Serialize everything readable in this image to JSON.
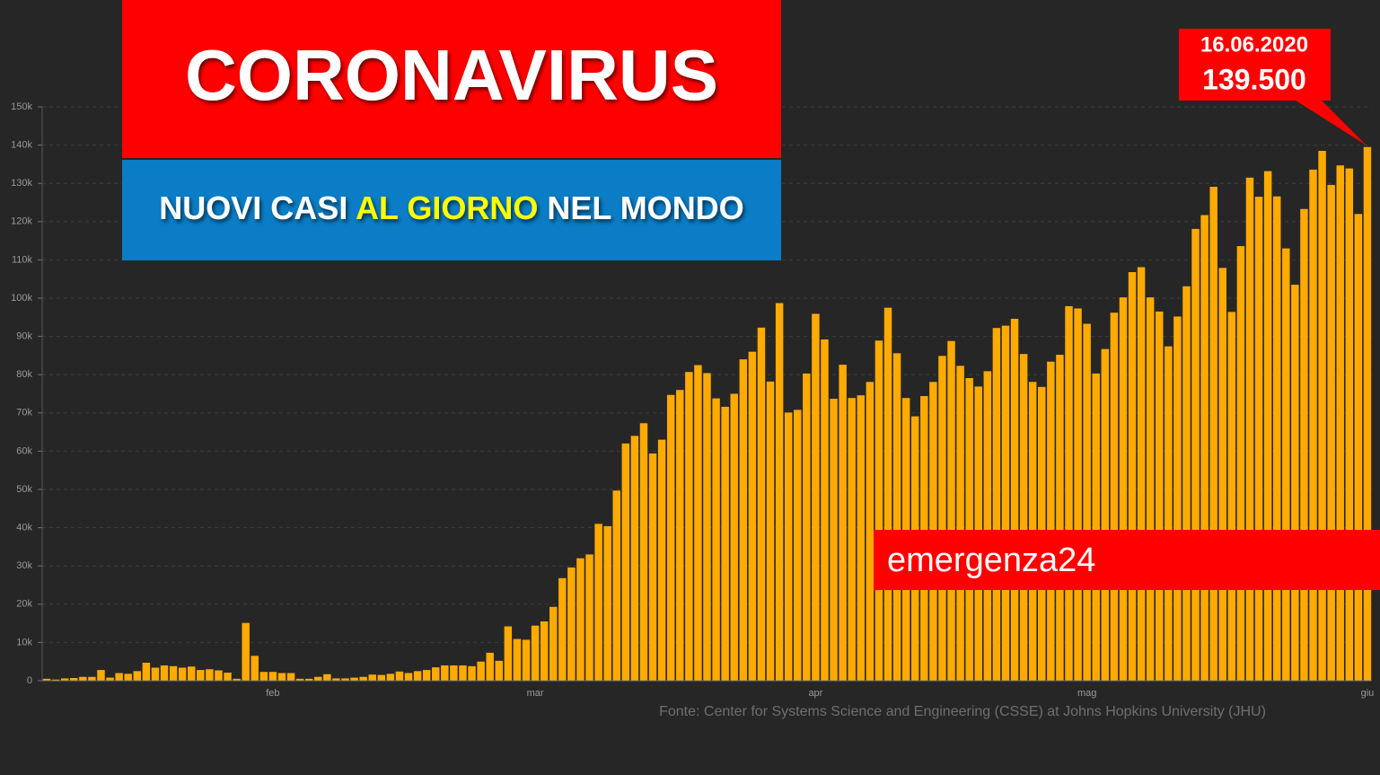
{
  "chart_data": {
    "type": "bar",
    "title": "CORONAVIRUS",
    "subtitle": [
      "NUOVI CASI ",
      "AL GIORNO",
      " NEL MONDO"
    ],
    "annotation": {
      "date": "16.06.2020",
      "label": "139.500"
    },
    "watermark": "emergenza24",
    "source": "Fonte: Center for Systems Science and Engineering (CSSE) at Johns Hopkins University (JHU)",
    "color": "#ffaa00",
    "grid": true,
    "categories": [
      null,
      null,
      null,
      null,
      null,
      null,
      null,
      null,
      null,
      null,
      null,
      null,
      null,
      null,
      null,
      null,
      null,
      null,
      null,
      null,
      null,
      null,
      null,
      null,
      null,
      "feb",
      null,
      null,
      null,
      null,
      null,
      null,
      null,
      null,
      null,
      null,
      null,
      null,
      null,
      null,
      null,
      null,
      null,
      null,
      null,
      null,
      null,
      null,
      null,
      null,
      null,
      null,
      null,
      null,
      "mar",
      null,
      null,
      null,
      null,
      null,
      null,
      null,
      null,
      null,
      null,
      null,
      null,
      null,
      null,
      null,
      null,
      null,
      null,
      null,
      null,
      null,
      null,
      null,
      null,
      null,
      null,
      null,
      null,
      null,
      null,
      "apr",
      null,
      null,
      null,
      null,
      null,
      null,
      null,
      null,
      null,
      null,
      null,
      null,
      null,
      null,
      null,
      null,
      null,
      null,
      null,
      null,
      null,
      null,
      null,
      null,
      null,
      null,
      null,
      null,
      null,
      "mag",
      null,
      null,
      null,
      null,
      null,
      null,
      null,
      null,
      null,
      null,
      null,
      null,
      null,
      null,
      null,
      null,
      null,
      null,
      null,
      null,
      null,
      null,
      null,
      null,
      null,
      null,
      null,
      null,
      null,
      null,
      "giu"
    ],
    "values": [
      500,
      300,
      600,
      700,
      1000,
      1000,
      2800,
      800,
      2000,
      1800,
      2500,
      4700,
      3400,
      4000,
      3800,
      3400,
      3700,
      2800,
      3000,
      2700,
      2100,
      500,
      15100,
      6500,
      2300,
      2300,
      2000,
      2000,
      500,
      500,
      1000,
      1700,
      600,
      600,
      800,
      1000,
      1600,
      1500,
      1800,
      2400,
      2000,
      2500,
      2800,
      3500,
      4000,
      4000,
      4000,
      3800,
      5000,
      7300,
      5200,
      14200,
      10900,
      10700,
      14400,
      15500,
      19300,
      26800,
      29600,
      32000,
      33000,
      41000,
      40400,
      49700,
      62000,
      64000,
      67300,
      59400,
      63000,
      74700,
      76000,
      80700,
      82500,
      80400,
      73800,
      71600,
      75000,
      84000,
      86000,
      92300,
      78200,
      98700,
      70100,
      70800,
      80300,
      95900,
      89200,
      73700,
      82600,
      73900,
      74600,
      78100,
      88900,
      97500,
      85600,
      73900,
      69100,
      74400,
      78100,
      84900,
      88800,
      82300,
      79100,
      76900,
      80900,
      92200,
      92800,
      94600,
      85400,
      78100,
      76800,
      83400,
      85200,
      97900,
      97300,
      93300,
      80300,
      86700,
      96200,
      100200,
      106800,
      108100,
      100200,
      96500,
      87400,
      95200,
      103100,
      118100,
      121700,
      129100,
      107900,
      96400,
      113600,
      131500,
      126500,
      133200,
      126600,
      113000,
      103500,
      123300,
      133600,
      138500,
      129600,
      134700,
      133900,
      122000,
      139500
    ],
    "ylim": [
      0,
      150000
    ],
    "yticks": [
      0,
      {
        "value": 10000,
        "label": "10k"
      },
      {
        "value": 20000,
        "label": "20k"
      },
      {
        "value": 30000,
        "label": "30k"
      },
      {
        "value": 40000,
        "label": "40k"
      },
      {
        "value": 50000,
        "label": "50k"
      },
      {
        "value": 60000,
        "label": "60k"
      },
      {
        "value": 70000,
        "label": "70k"
      },
      {
        "value": 80000,
        "label": "80k"
      },
      {
        "value": 90000,
        "label": "90k"
      },
      {
        "value": 100000,
        "label": "100k"
      },
      {
        "value": 110000,
        "label": "110k"
      },
      {
        "value": 120000,
        "label": "120k"
      },
      {
        "value": 130000,
        "label": "130k"
      },
      {
        "value": 140000,
        "label": "140k"
      },
      {
        "value": 150000,
        "label": "150k"
      }
    ]
  }
}
